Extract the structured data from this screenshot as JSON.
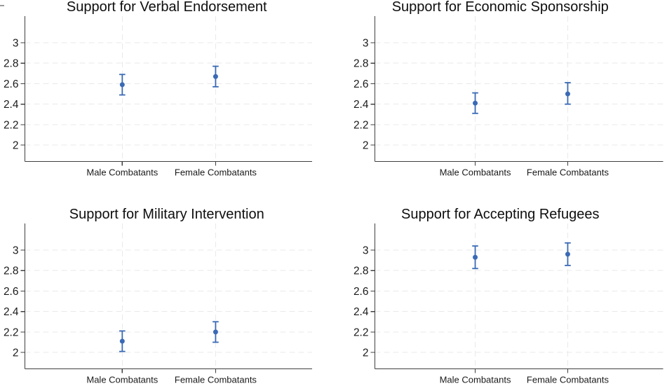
{
  "style": {
    "background": "#ffffff",
    "point_color": "#3A6AB5",
    "grid_color": "#E9E9E9",
    "axis_color": "#3F3F3F",
    "tick_text_color": "#1A1A1A",
    "title_color": "#0E0E0E"
  },
  "chart_data": [
    {
      "type": "scatter",
      "title": "Support for Verbal Endorsement",
      "categories": [
        "Male Combatants",
        "Female Combatants"
      ],
      "estimates": [
        2.59,
        2.67
      ],
      "ci_low": [
        2.49,
        2.57
      ],
      "ci_high": [
        2.69,
        2.77
      ],
      "yticks": [
        2,
        2.2,
        2.4,
        2.6,
        2.8,
        3
      ],
      "ylim": [
        1.84,
        3.26
      ],
      "grid": "dashed",
      "legend": "none"
    },
    {
      "type": "scatter",
      "title": "Support for Economic Sponsorship",
      "categories": [
        "Male Combatants",
        "Female Combatants"
      ],
      "estimates": [
        2.41,
        2.5
      ],
      "ci_low": [
        2.31,
        2.4
      ],
      "ci_high": [
        2.51,
        2.61
      ],
      "yticks": [
        2,
        2.2,
        2.4,
        2.6,
        2.8,
        3
      ],
      "ylim": [
        1.84,
        3.26
      ],
      "grid": "dashed",
      "legend": "none"
    },
    {
      "type": "scatter",
      "title": "Support for Military Intervention",
      "categories": [
        "Male Combatants",
        "Female Combatants"
      ],
      "estimates": [
        2.11,
        2.2
      ],
      "ci_low": [
        2.01,
        2.1
      ],
      "ci_high": [
        2.21,
        2.3
      ],
      "yticks": [
        2,
        2.2,
        2.4,
        2.6,
        2.8,
        3
      ],
      "ylim": [
        1.84,
        3.26
      ],
      "grid": "dashed",
      "legend": "none"
    },
    {
      "type": "scatter",
      "title": "Support for Accepting Refugees",
      "categories": [
        "Male Combatants",
        "Female Combatants"
      ],
      "estimates": [
        2.93,
        2.96
      ],
      "ci_low": [
        2.82,
        2.85
      ],
      "ci_high": [
        3.04,
        3.07
      ],
      "yticks": [
        2,
        2.2,
        2.4,
        2.6,
        2.8,
        3
      ],
      "ylim": [
        1.84,
        3.26
      ],
      "grid": "dashed",
      "legend": "none"
    }
  ]
}
